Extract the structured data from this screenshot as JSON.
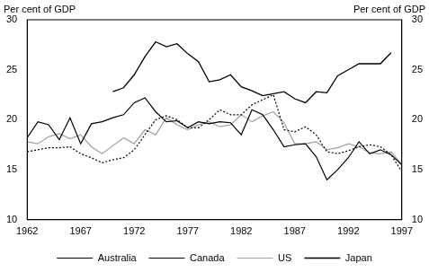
{
  "chart_data": {
    "type": "line",
    "ylabel": "Per cent of GDP",
    "y2label": "Per cent of GDP",
    "x": [
      1962,
      1963,
      1964,
      1965,
      1966,
      1967,
      1968,
      1969,
      1970,
      1971,
      1972,
      1973,
      1974,
      1975,
      1976,
      1977,
      1978,
      1979,
      1980,
      1981,
      1982,
      1983,
      1984,
      1985,
      1986,
      1987,
      1988,
      1989,
      1990,
      1991,
      1992,
      1993,
      1994,
      1995,
      1996,
      1997
    ],
    "xlim": [
      1962,
      1997
    ],
    "xticks": [
      1962,
      1967,
      1972,
      1977,
      1982,
      1987,
      1992,
      1997
    ],
    "ylim": [
      10,
      30
    ],
    "yticks": [
      10,
      15,
      20,
      25,
      30
    ],
    "y2lim": [
      10,
      30
    ],
    "y2ticks": [
      10,
      15,
      20,
      25,
      30
    ],
    "grid": false,
    "legend": "bottom",
    "marker": "none",
    "series": [
      {
        "name": "Australia",
        "color": "#000000",
        "line_style": "solid",
        "values": [
          18.2,
          19.8,
          19.5,
          18.0,
          20.2,
          17.6,
          19.6,
          19.8,
          20.2,
          20.5,
          21.7,
          22.2,
          20.8,
          19.8,
          19.9,
          19.2,
          19.8,
          19.6,
          19.8,
          19.7,
          18.5,
          21.0,
          20.5,
          19.0,
          17.3,
          17.5,
          17.6,
          16.3,
          14.0,
          15.0,
          16.2,
          17.8,
          16.6,
          17.0,
          16.5,
          15.5
        ]
      },
      {
        "name": "Canada",
        "color": "#000000",
        "line_style": "dotted",
        "values": [
          16.8,
          17.0,
          17.2,
          17.2,
          17.3,
          16.6,
          16.2,
          15.7,
          16.0,
          16.2,
          17.0,
          18.5,
          20.0,
          20.4,
          20.0,
          19.2,
          19.2,
          20.0,
          21.0,
          20.5,
          20.5,
          21.5,
          22.0,
          22.5,
          19.0,
          18.8,
          19.3,
          18.5,
          16.8,
          16.6,
          16.9,
          17.3,
          17.5,
          17.3,
          16.5,
          14.8
        ]
      },
      {
        "name": "US",
        "color": "#a0a0a0",
        "line_style": "solid",
        "values": [
          17.8,
          17.6,
          18.3,
          18.6,
          18.1,
          18.5,
          17.3,
          16.6,
          17.4,
          18.2,
          17.6,
          19.0,
          18.5,
          20.2,
          19.5,
          19.0,
          19.5,
          19.8,
          19.3,
          19.5,
          20.5,
          19.8,
          20.4,
          20.8,
          19.7,
          17.6,
          17.6,
          17.8,
          17.0,
          17.2,
          17.6,
          17.3,
          16.7,
          16.6,
          16.8,
          15.5
        ]
      },
      {
        "name": "Japan",
        "color": "#000000",
        "line_style": "solid",
        "values": [
          null,
          null,
          null,
          null,
          null,
          null,
          null,
          null,
          22.8,
          23.2,
          24.5,
          26.3,
          27.8,
          27.3,
          27.6,
          26.6,
          25.8,
          23.8,
          24.0,
          24.5,
          23.3,
          22.9,
          22.4,
          22.6,
          22.8,
          22.1,
          21.7,
          22.8,
          22.7,
          24.4,
          25.0,
          25.6,
          25.6,
          25.6,
          26.7,
          null
        ]
      }
    ]
  }
}
